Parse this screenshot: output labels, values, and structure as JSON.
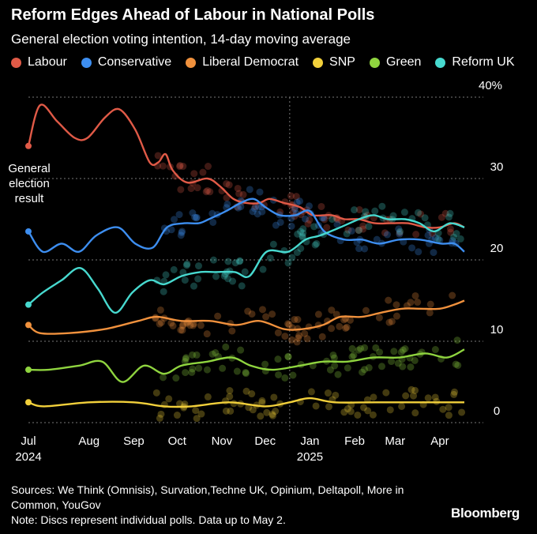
{
  "title": "Reform Edges Ahead of Labour in National Polls",
  "subtitle": "General election voting intention, 14-day moving average",
  "annotation": "General election result",
  "footer": {
    "sources": "Sources: We Think (Omnisis), Survation,Techne UK, Opinium, Deltapoll, More in Common, YouGov",
    "note": "Note: Discs represent individual polls. Data up to May 2."
  },
  "brand": "Bloomberg",
  "colors": {
    "Labour": "#e05a47",
    "Conservative": "#3d8ef0",
    "Liberal Democrat": "#f0913d",
    "SNP": "#f2d03b",
    "Green": "#8fd43f",
    "Reform UK": "#47d9cf"
  },
  "chart_data": {
    "type": "line",
    "x_axis": {
      "ticks": [
        "Jul",
        "Aug",
        "Sep",
        "Oct",
        "Nov",
        "Dec",
        "Jan",
        "Feb",
        "Mar",
        "Apr"
      ],
      "year_labels": [
        {
          "month": "Jul",
          "year": "2024"
        },
        {
          "month": "Jan",
          "year": "2025"
        }
      ],
      "range": [
        "2024-07-04",
        "2025-05-02"
      ]
    },
    "y_axis": {
      "range": [
        0,
        40
      ],
      "ticks": [
        "0",
        "10",
        "20",
        "30",
        "40%"
      ],
      "grid": true
    },
    "legend_position": "top",
    "markers": "individual polls shown as translucent discs",
    "series": [
      {
        "name": "Labour",
        "points": [
          [
            "2024-07-04",
            34
          ],
          [
            "2024-07-12",
            39
          ],
          [
            "2024-07-24",
            37
          ],
          [
            "2024-08-05",
            35
          ],
          [
            "2024-08-14",
            35
          ],
          [
            "2024-08-26",
            37.5
          ],
          [
            "2024-09-05",
            38.5
          ],
          [
            "2024-09-16",
            36
          ],
          [
            "2024-09-26",
            32
          ],
          [
            "2024-10-02",
            32
          ],
          [
            "2024-10-07",
            33
          ],
          [
            "2024-10-12",
            31
          ],
          [
            "2024-10-22",
            29.5
          ],
          [
            "2024-11-05",
            30
          ],
          [
            "2024-11-14",
            29
          ],
          [
            "2024-11-23",
            27.5
          ],
          [
            "2024-12-02",
            27
          ],
          [
            "2024-12-11",
            27
          ],
          [
            "2024-12-18",
            27.5
          ],
          [
            "2024-12-28",
            27
          ],
          [
            "2025-01-08",
            26.5
          ],
          [
            "2025-01-17",
            25.5
          ],
          [
            "2025-01-30",
            25.5
          ],
          [
            "2025-02-08",
            25
          ],
          [
            "2025-02-18",
            25
          ],
          [
            "2025-03-01",
            24.5
          ],
          [
            "2025-03-12",
            24.5
          ],
          [
            "2025-03-24",
            24.5
          ],
          [
            "2025-04-05",
            24
          ],
          [
            "2025-04-15",
            24
          ],
          [
            "2025-04-25",
            24.5
          ],
          [
            "2025-05-02",
            24
          ]
        ]
      },
      {
        "name": "Conservative",
        "points": [
          [
            "2024-07-04",
            23.5
          ],
          [
            "2024-07-14",
            21
          ],
          [
            "2024-07-27",
            22
          ],
          [
            "2024-08-08",
            21
          ],
          [
            "2024-08-20",
            23
          ],
          [
            "2024-09-04",
            24
          ],
          [
            "2024-09-16",
            22
          ],
          [
            "2024-09-28",
            21.5
          ],
          [
            "2024-10-08",
            24
          ],
          [
            "2024-10-20",
            24.5
          ],
          [
            "2024-10-30",
            24.5
          ],
          [
            "2024-11-06",
            25
          ],
          [
            "2024-11-18",
            26
          ],
          [
            "2024-11-28",
            27
          ],
          [
            "2024-12-07",
            27.5
          ],
          [
            "2024-12-15",
            26.5
          ],
          [
            "2024-12-25",
            25.5
          ],
          [
            "2025-01-05",
            25.5
          ],
          [
            "2025-01-15",
            26
          ],
          [
            "2025-01-25",
            23.5
          ],
          [
            "2025-02-08",
            22.5
          ],
          [
            "2025-02-20",
            22.5
          ],
          [
            "2025-03-04",
            22
          ],
          [
            "2025-03-18",
            22.5
          ],
          [
            "2025-04-01",
            22.5
          ],
          [
            "2025-04-16",
            22
          ],
          [
            "2025-04-25",
            22
          ],
          [
            "2025-05-02",
            21
          ]
        ]
      },
      {
        "name": "Liberal Democrat",
        "points": [
          [
            "2024-07-04",
            12
          ],
          [
            "2024-07-12",
            11
          ],
          [
            "2024-08-01",
            11
          ],
          [
            "2024-08-26",
            11.5
          ],
          [
            "2024-09-18",
            12.5
          ],
          [
            "2024-10-01",
            13
          ],
          [
            "2024-10-18",
            12.5
          ],
          [
            "2024-11-07",
            12.5
          ],
          [
            "2024-11-25",
            12
          ],
          [
            "2024-12-11",
            12.5
          ],
          [
            "2024-12-28",
            11.5
          ],
          [
            "2025-01-10",
            11.5
          ],
          [
            "2025-01-24",
            12
          ],
          [
            "2025-02-05",
            13
          ],
          [
            "2025-02-20",
            13
          ],
          [
            "2025-03-05",
            13.5
          ],
          [
            "2025-03-20",
            14
          ],
          [
            "2025-04-01",
            14
          ],
          [
            "2025-04-15",
            14
          ],
          [
            "2025-04-25",
            14.5
          ],
          [
            "2025-05-02",
            15
          ]
        ]
      },
      {
        "name": "SNP",
        "points": [
          [
            "2024-07-04",
            2.5
          ],
          [
            "2024-07-15",
            2
          ],
          [
            "2024-08-15",
            2.5
          ],
          [
            "2024-09-15",
            2.5
          ],
          [
            "2024-10-06",
            2
          ],
          [
            "2024-10-25",
            2
          ],
          [
            "2024-11-20",
            2.5
          ],
          [
            "2024-12-15",
            2
          ],
          [
            "2025-01-01",
            2.5
          ],
          [
            "2025-01-15",
            3
          ],
          [
            "2025-02-01",
            2.5
          ],
          [
            "2025-03-01",
            2.5
          ],
          [
            "2025-04-01",
            2.5
          ],
          [
            "2025-05-02",
            2.5
          ]
        ]
      },
      {
        "name": "Green",
        "points": [
          [
            "2024-07-04",
            6.5
          ],
          [
            "2024-07-18",
            6.5
          ],
          [
            "2024-08-08",
            7
          ],
          [
            "2024-08-24",
            7.5
          ],
          [
            "2024-09-07",
            5
          ],
          [
            "2024-09-22",
            7
          ],
          [
            "2024-10-06",
            6
          ],
          [
            "2024-10-18",
            7
          ],
          [
            "2024-11-05",
            7.5
          ],
          [
            "2024-11-22",
            8
          ],
          [
            "2024-12-05",
            7
          ],
          [
            "2024-12-20",
            6.5
          ],
          [
            "2025-01-08",
            7
          ],
          [
            "2025-01-24",
            7.5
          ],
          [
            "2025-02-10",
            7.5
          ],
          [
            "2025-02-28",
            8
          ],
          [
            "2025-03-18",
            8
          ],
          [
            "2025-04-05",
            8.5
          ],
          [
            "2025-04-20",
            8
          ],
          [
            "2025-05-02",
            9
          ]
        ]
      },
      {
        "name": "Reform UK",
        "points": [
          [
            "2024-07-04",
            14.5
          ],
          [
            "2024-07-14",
            16
          ],
          [
            "2024-07-27",
            17.5
          ],
          [
            "2024-08-09",
            19
          ],
          [
            "2024-08-21",
            16.5
          ],
          [
            "2024-09-02",
            13.5
          ],
          [
            "2024-09-14",
            16
          ],
          [
            "2024-09-26",
            17.5
          ],
          [
            "2024-10-06",
            17
          ],
          [
            "2024-10-18",
            18
          ],
          [
            "2024-10-31",
            18.5
          ],
          [
            "2024-11-10",
            18.5
          ],
          [
            "2024-11-24",
            18.5
          ],
          [
            "2024-12-04",
            18
          ],
          [
            "2024-12-16",
            21
          ],
          [
            "2024-12-31",
            21
          ],
          [
            "2025-01-12",
            22.5
          ],
          [
            "2025-01-22",
            23
          ],
          [
            "2025-02-05",
            24
          ],
          [
            "2025-02-18",
            25
          ],
          [
            "2025-02-28",
            25.5
          ],
          [
            "2025-03-10",
            25
          ],
          [
            "2025-03-22",
            25
          ],
          [
            "2025-04-01",
            24.5
          ],
          [
            "2025-04-11",
            23.5
          ],
          [
            "2025-04-22",
            24.5
          ],
          [
            "2025-05-02",
            24
          ]
        ]
      }
    ]
  }
}
